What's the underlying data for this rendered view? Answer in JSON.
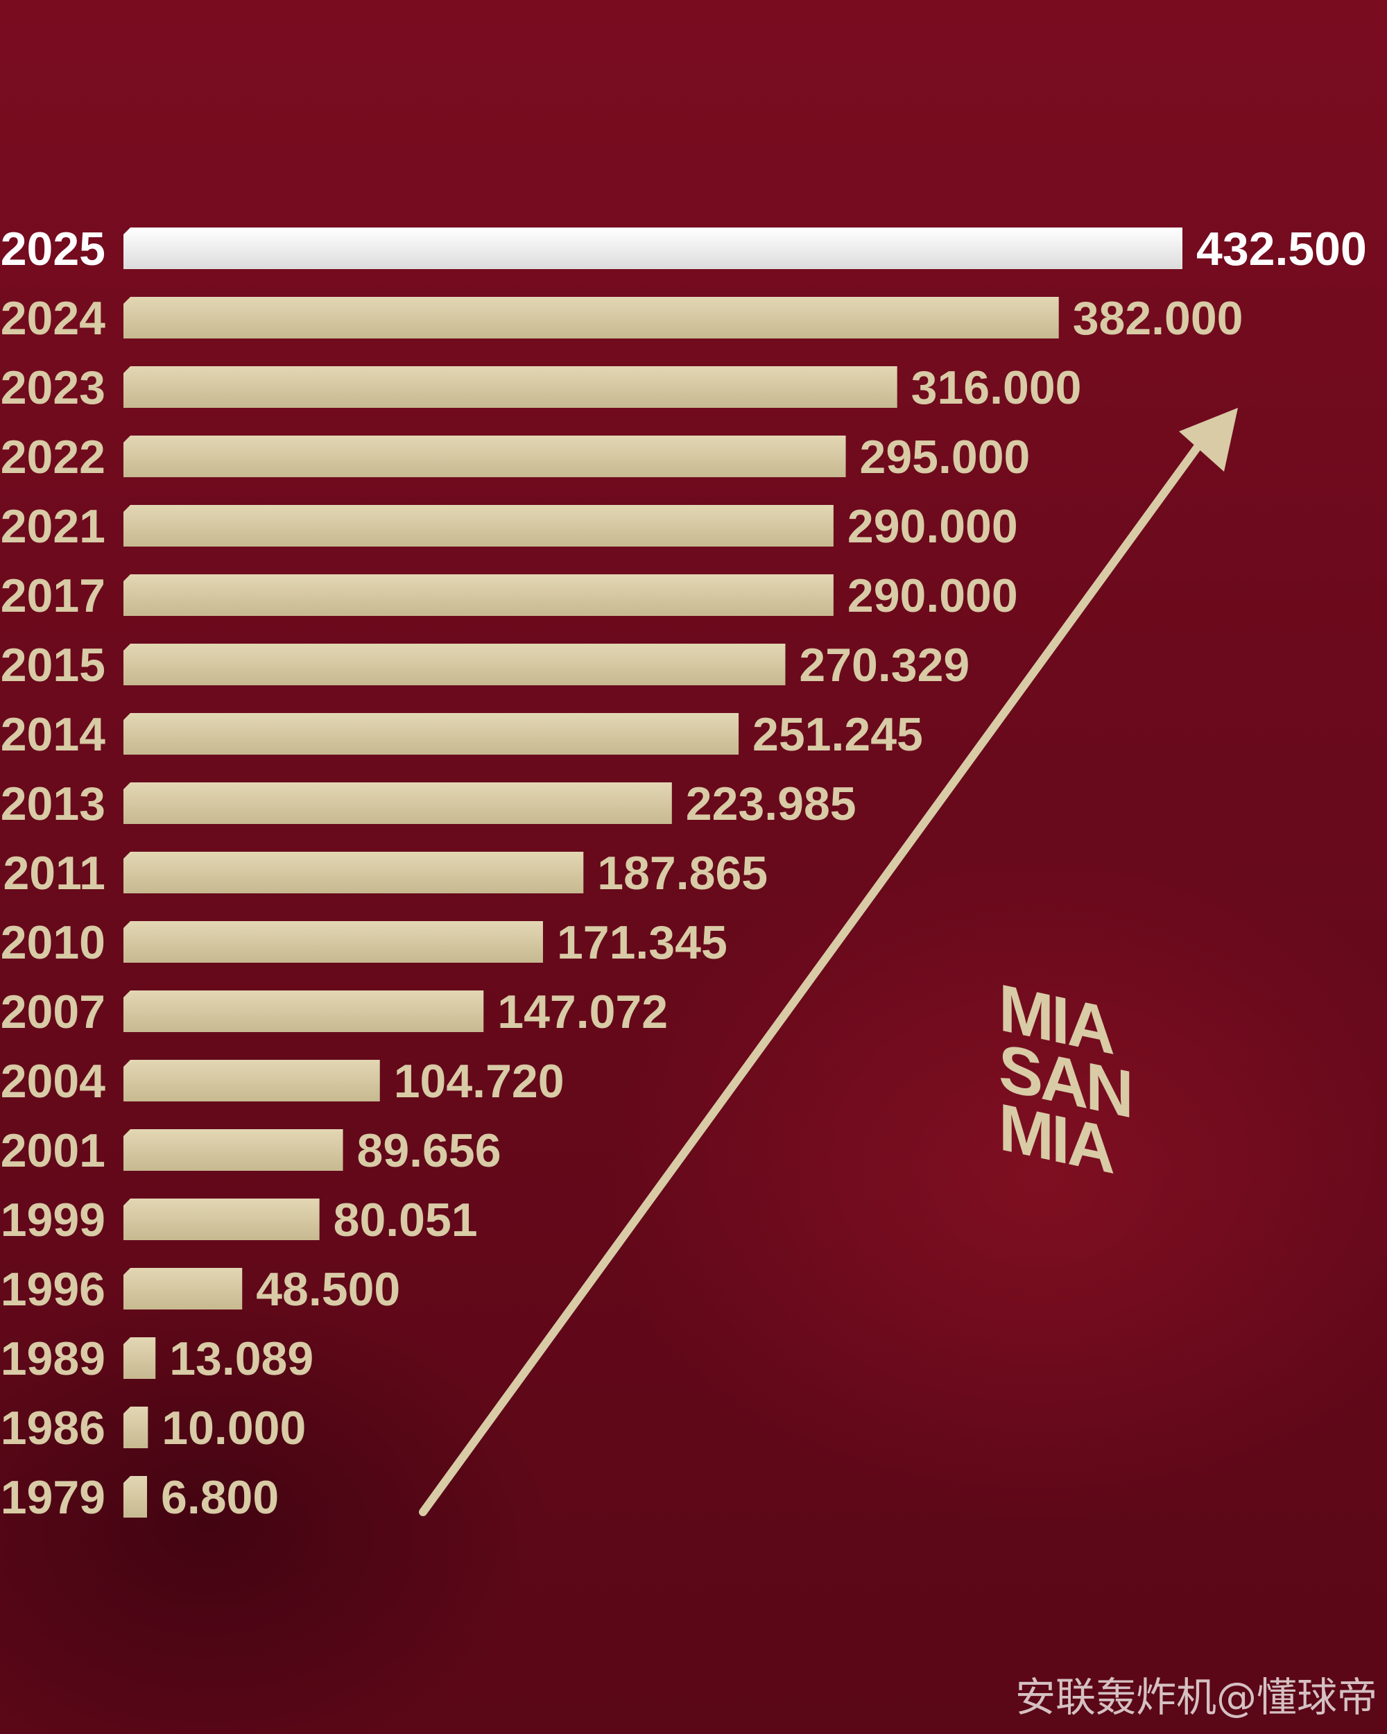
{
  "chart_data": {
    "type": "bar",
    "orientation": "horizontal",
    "categories": [
      "2025",
      "2024",
      "2023",
      "2022",
      "2021",
      "2017",
      "2015",
      "2014",
      "2013",
      "2011",
      "2010",
      "2007",
      "2004",
      "2001",
      "1999",
      "1996",
      "1989",
      "1986",
      "1979"
    ],
    "values": [
      432500,
      382000,
      316000,
      295000,
      290000,
      290000,
      270329,
      251245,
      223985,
      187865,
      171345,
      147072,
      104720,
      89656,
      80051,
      48500,
      13089,
      10000,
      6800
    ],
    "value_labels": [
      "432.500",
      "382.000",
      "316.000",
      "295.000",
      "290.000",
      "290.000",
      "270.329",
      "251.245",
      "223.985",
      "187.865",
      "171.345",
      "147.072",
      "104.720",
      "89.656",
      "80.051",
      "48.500",
      "13.089",
      "10.000",
      "6.800"
    ],
    "title": "",
    "xlabel": "",
    "ylabel": "",
    "grid": false,
    "legend": "none",
    "highlight_category": "2025"
  },
  "colors": {
    "background": "#6e0a1c",
    "bar": "#d8cba6",
    "highlight_bar": "#f2f2f2",
    "arrow": "#d8cba6"
  },
  "logo": {
    "lines": [
      "MIA",
      "SAN",
      "MIA"
    ]
  },
  "watermark": "安联轰炸机@懂球帝",
  "icons": {
    "trend": "up-right-arrow-icon"
  }
}
